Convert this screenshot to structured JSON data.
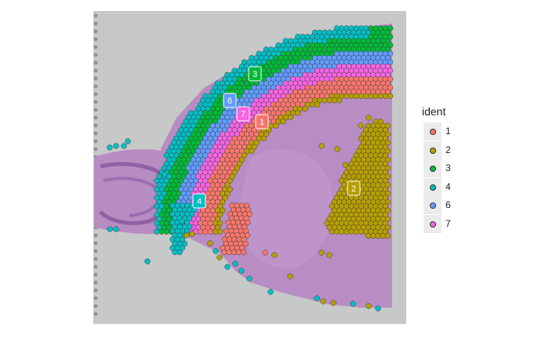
{
  "legend": {
    "title": "ident",
    "items": [
      {
        "label": "1",
        "color": "#F8766D"
      },
      {
        "label": "2",
        "color": "#B79F00"
      },
      {
        "label": "3",
        "color": "#00BA38"
      },
      {
        "label": "4",
        "color": "#00BFC4"
      },
      {
        "label": "6",
        "color": "#619CFF"
      },
      {
        "label": "7",
        "color": "#F564E3"
      }
    ]
  },
  "cluster_labels": [
    {
      "text": "3",
      "color": "#00BA38"
    },
    {
      "text": "6",
      "color": "#619CFF"
    },
    {
      "text": "7",
      "color": "#F564E3"
    },
    {
      "text": "1",
      "color": "#F8766D"
    },
    {
      "text": "2",
      "color": "#B79F00"
    },
    {
      "text": "4",
      "color": "#00BFC4"
    }
  ]
}
